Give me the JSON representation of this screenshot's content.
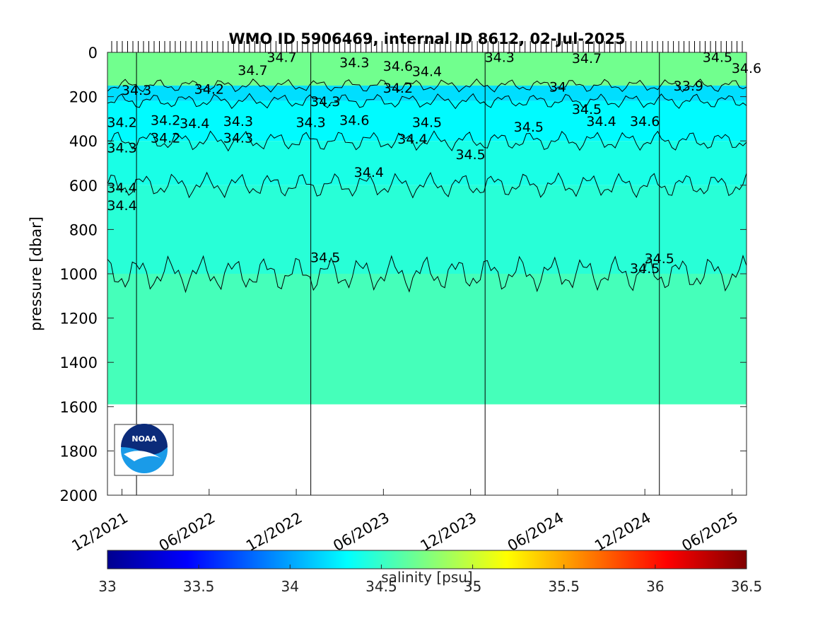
{
  "chart_data": {
    "type": "heatmap",
    "title": "WMO ID 5906469, internal ID 8612, 02-Jul-2025",
    "xlabel": "",
    "ylabel": "pressure [dbar]",
    "x_start": "2021-11",
    "x_end": "2025-07",
    "x_ticks": [
      "12/2021",
      "06/2022",
      "12/2022",
      "06/2023",
      "12/2023",
      "06/2024",
      "12/2024",
      "06/2025"
    ],
    "x_tick_dates": [
      "2021-12",
      "2022-06",
      "2022-12",
      "2023-06",
      "2023-12",
      "2024-06",
      "2024-12",
      "2025-06"
    ],
    "year_lines": [
      "2022-01",
      "2023-01",
      "2024-01",
      "2025-01"
    ],
    "ylim": [
      0,
      2000
    ],
    "y_reversed": true,
    "y_ticks": [
      0,
      200,
      400,
      600,
      800,
      1000,
      1200,
      1400,
      1600,
      1800,
      2000
    ],
    "max_pressure": 1590,
    "profiles_visible": 120,
    "layers": [
      {
        "from": 0,
        "to": 150,
        "salinity": 34.7
      },
      {
        "from": 150,
        "to": 220,
        "salinity": 34.2
      },
      {
        "from": 220,
        "to": 400,
        "salinity": 34.3
      },
      {
        "from": 400,
        "to": 600,
        "salinity": 34.4
      },
      {
        "from": 600,
        "to": 1000,
        "salinity": 34.45
      },
      {
        "from": 1000,
        "to": 1590,
        "salinity": 34.55
      }
    ],
    "contour_labels": [
      {
        "date": "2022-09",
        "p": 80,
        "text": "34.7"
      },
      {
        "date": "2022-11",
        "p": 20,
        "text": "34.7"
      },
      {
        "date": "2023-04",
        "p": 45,
        "text": "34.3"
      },
      {
        "date": "2023-07",
        "p": 60,
        "text": "34.6"
      },
      {
        "date": "2023-09",
        "p": 85,
        "text": "34.4"
      },
      {
        "date": "2024-02",
        "p": 20,
        "text": "34.3"
      },
      {
        "date": "2024-08",
        "p": 25,
        "text": "34.7"
      },
      {
        "date": "2025-05",
        "p": 20,
        "text": "34.5"
      },
      {
        "date": "2025-07",
        "p": 70,
        "text": "34.6"
      },
      {
        "date": "2022-06",
        "p": 165,
        "text": "34.2"
      },
      {
        "date": "2022-01",
        "p": 170,
        "text": "34.3"
      },
      {
        "date": "2023-02",
        "p": 220,
        "text": "34.3"
      },
      {
        "date": "2023-07",
        "p": 160,
        "text": "34.2"
      },
      {
        "date": "2024-06",
        "p": 155,
        "text": "34"
      },
      {
        "date": "2025-03",
        "p": 150,
        "text": "33.9"
      },
      {
        "date": "2021-12",
        "p": 315,
        "text": "34.2"
      },
      {
        "date": "2022-03",
        "p": 305,
        "text": "34.2"
      },
      {
        "date": "2022-05",
        "p": 320,
        "text": "34.4"
      },
      {
        "date": "2022-08",
        "p": 310,
        "text": "34.3"
      },
      {
        "date": "2023-01",
        "p": 315,
        "text": "34.3"
      },
      {
        "date": "2023-04",
        "p": 305,
        "text": "34.6"
      },
      {
        "date": "2023-09",
        "p": 315,
        "text": "34.5"
      },
      {
        "date": "2024-04",
        "p": 335,
        "text": "34.5"
      },
      {
        "date": "2024-08",
        "p": 255,
        "text": "34.5"
      },
      {
        "date": "2024-09",
        "p": 310,
        "text": "34.4"
      },
      {
        "date": "2024-12",
        "p": 310,
        "text": "34.6"
      },
      {
        "date": "2021-12",
        "p": 430,
        "text": "34.3"
      },
      {
        "date": "2022-03",
        "p": 385,
        "text": "34.2"
      },
      {
        "date": "2022-08",
        "p": 385,
        "text": "34.3"
      },
      {
        "date": "2023-08",
        "p": 390,
        "text": "34.4"
      },
      {
        "date": "2023-12",
        "p": 460,
        "text": "34.5"
      },
      {
        "date": "2023-05",
        "p": 540,
        "text": "34.4"
      },
      {
        "date": "2021-12",
        "p": 610,
        "text": "34.4"
      },
      {
        "date": "2021-12",
        "p": 690,
        "text": "34.4"
      },
      {
        "date": "2023-02",
        "p": 925,
        "text": "34.5"
      },
      {
        "date": "2025-01",
        "p": 930,
        "text": "34.5"
      },
      {
        "date": "2024-12",
        "p": 975,
        "text": "34.5"
      }
    ],
    "colorbar": {
      "label": "salinity [psu]",
      "range": [
        33,
        36.5
      ],
      "ticks": [
        "33",
        "33.5",
        "34",
        "34.5",
        "35",
        "35.5",
        "36",
        "36.5"
      ],
      "colormap": "jet"
    },
    "logo": "NOAA"
  }
}
